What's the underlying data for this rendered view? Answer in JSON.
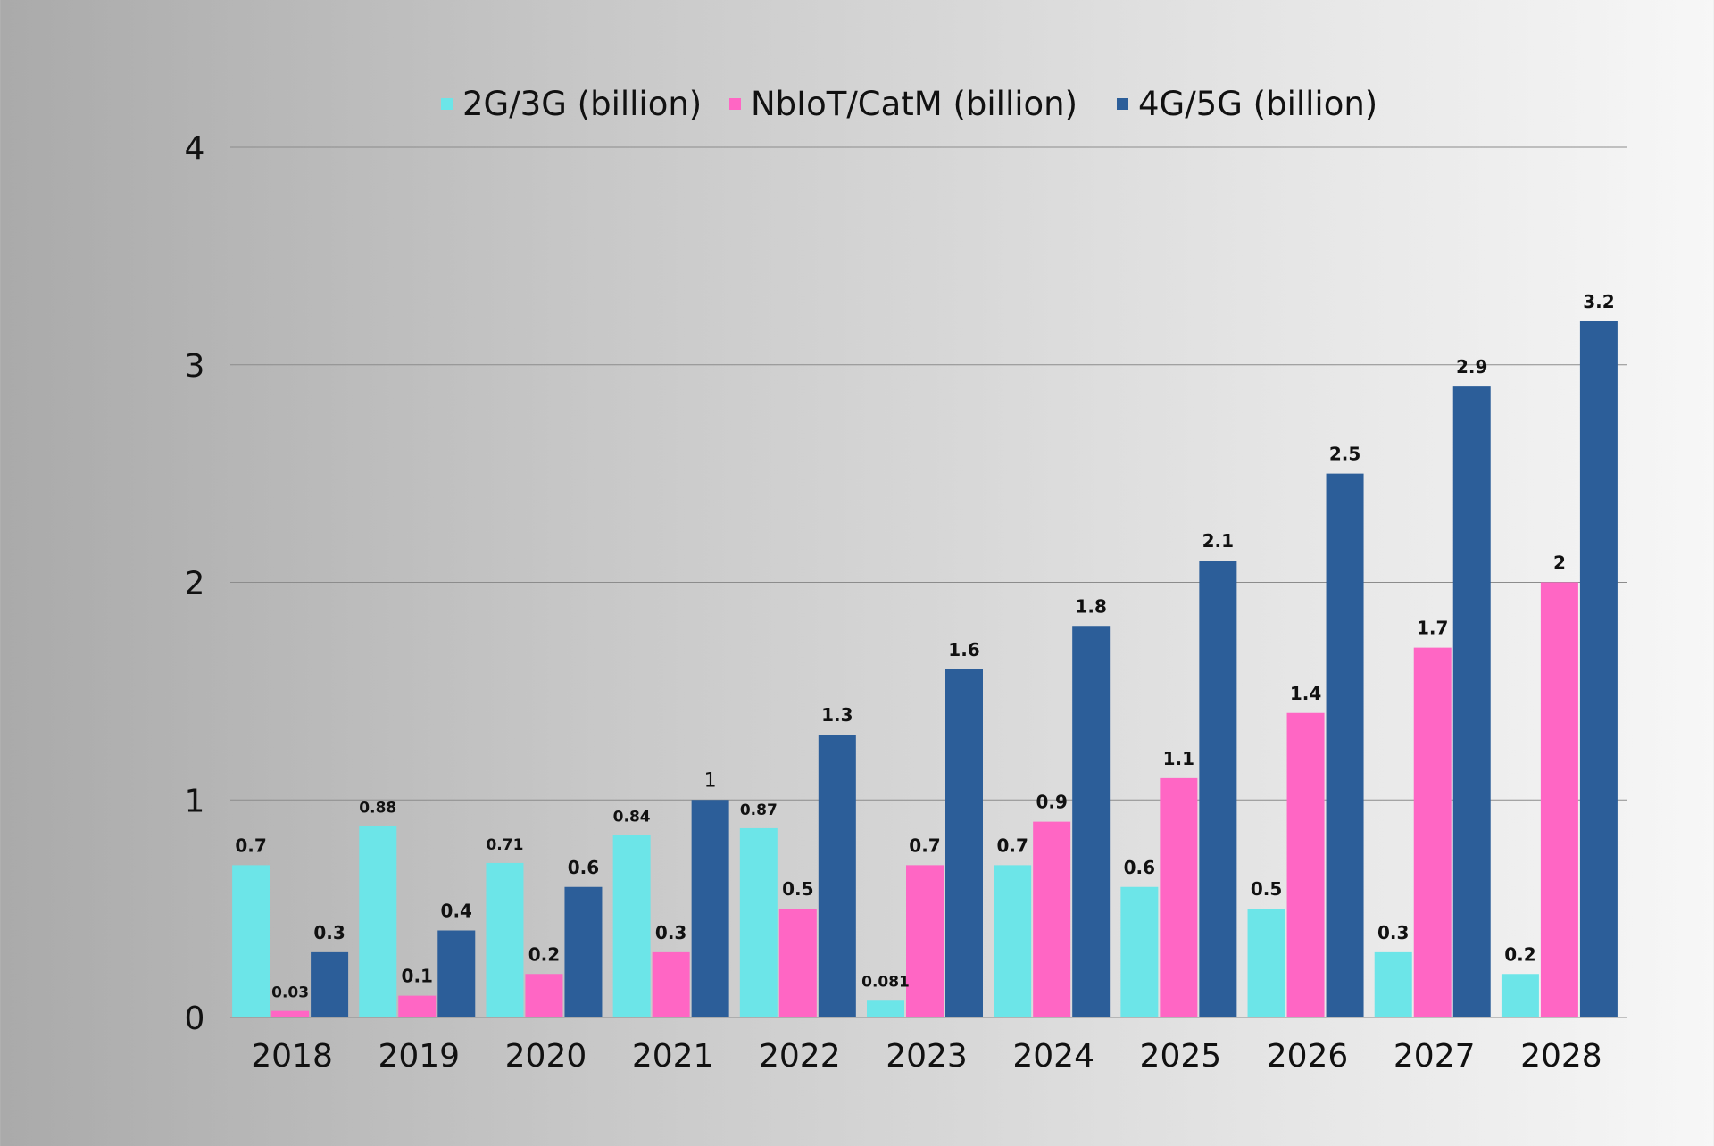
{
  "chart_data": {
    "type": "bar",
    "title": "",
    "xlabel": "",
    "ylabel": "",
    "ylim": [
      0,
      4
    ],
    "yticks": [
      0,
      1,
      2,
      3,
      4
    ],
    "grid": true,
    "legend_position": "top-center",
    "categories": [
      "2018",
      "2019",
      "2020",
      "2021",
      "2022",
      "2023",
      "2024",
      "2025",
      "2026",
      "2027",
      "2028"
    ],
    "series": [
      {
        "name": "2G/3G (billion)",
        "color": "#6ce5e8",
        "values": [
          0.7,
          0.88,
          0.71,
          0.84,
          0.87,
          0.081,
          0.7,
          0.6,
          0.5,
          0.3,
          0.2
        ],
        "labels": [
          "0.7",
          "0.88",
          "0.71",
          "0.84",
          "0.87",
          "0.081",
          "0.7",
          "0.6",
          "0.5",
          "0.3",
          "0.2"
        ]
      },
      {
        "name": "NbIoT/CatM (billion)",
        "color": "#ff66c4",
        "values": [
          0.03,
          0.1,
          0.2,
          0.3,
          0.5,
          0.7,
          0.9,
          1.1,
          1.4,
          1.7,
          2
        ],
        "labels": [
          "0.03",
          "0.1",
          "0.2",
          "0.3",
          "0.5",
          "0.7",
          "0.9",
          "1.1",
          "1.4",
          "1.7",
          "2"
        ]
      },
      {
        "name": "4G/5G (billion)",
        "color": "#2c5e99",
        "values": [
          0.3,
          0.4,
          0.6,
          1,
          1.3,
          1.6,
          1.8,
          2.1,
          2.5,
          2.9,
          3.2
        ],
        "labels": [
          "0.3",
          "0.4",
          "0.6",
          "1",
          "1.3",
          "1.6",
          "1.8",
          "2.1",
          "2.5",
          "2.9",
          "3.2"
        ]
      }
    ]
  }
}
